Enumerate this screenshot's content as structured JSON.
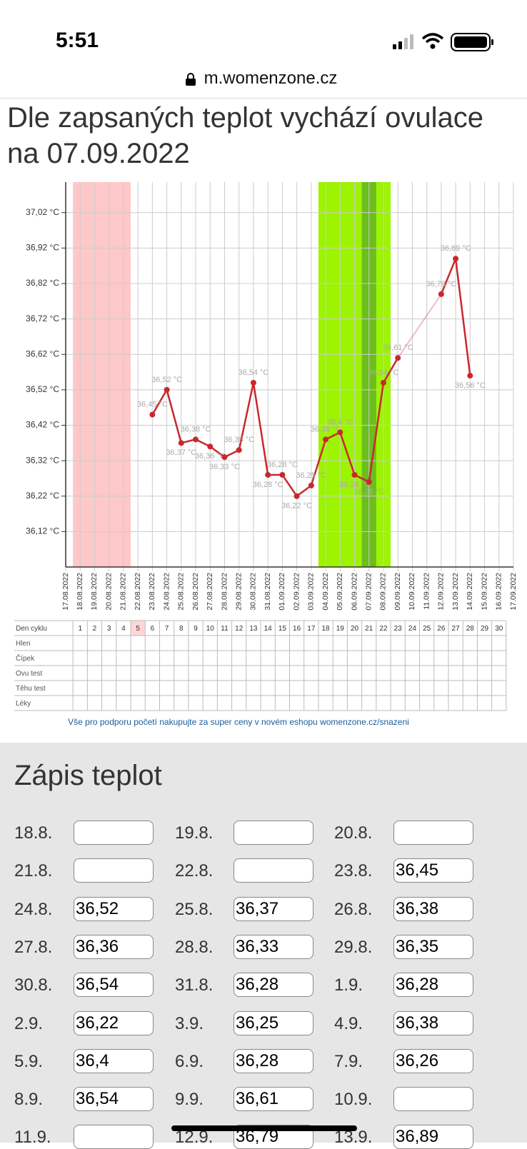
{
  "status": {
    "time": "5:51"
  },
  "browser": {
    "url": "m.womenzone.cz"
  },
  "heading": "Dle zapsaných teplot vychází ovulace na 07.09.2022",
  "chart_data": {
    "type": "line",
    "categories": [
      "17.08.2022",
      "18.08.2022",
      "19.08.2022",
      "20.08.2022",
      "21.08.2022",
      "22.08.2022",
      "23.08.2022",
      "24.08.2022",
      "25.08.2022",
      "26.08.2022",
      "27.08.2022",
      "28.08.2022",
      "29.08.2022",
      "30.08.2022",
      "31.08.2022",
      "01.09.2022",
      "02.09.2022",
      "03.09.2022",
      "04.09.2022",
      "05.09.2022",
      "06.09.2022",
      "07.09.2022",
      "08.09.2022",
      "09.09.2022",
      "10.09.2022",
      "11.09.2022",
      "12.09.2022",
      "13.09.2022",
      "14.09.2022",
      "15.09.2022",
      "16.09.2022",
      "17.09.2022"
    ],
    "series": [
      {
        "color": "#c8282d",
        "values": [
          null,
          null,
          null,
          null,
          null,
          null,
          36.45,
          36.52,
          36.37,
          36.38,
          36.36,
          36.33,
          36.35,
          36.54,
          36.28,
          36.28,
          36.22,
          36.25,
          36.38,
          36.4,
          36.28,
          36.26,
          36.54,
          36.61,
          null,
          null,
          36.79,
          36.89,
          36.56,
          null,
          null,
          null
        ],
        "value_labels": [
          null,
          null,
          null,
          null,
          null,
          null,
          "36,45 °C",
          "36,52 °C",
          "36,37 °C",
          "36,38 °C",
          "36,36 °C",
          "36,33 °C",
          "36,35 °C",
          "36,54 °C",
          "36,28 °C",
          "36,28 °C",
          "36,22 °C",
          "36,25 °C",
          "36,38 °C",
          "36,4 °C",
          "36,28 °C",
          "36,26 °C",
          "36,54 °C",
          "36,61 °C",
          null,
          null,
          "36,79 °C",
          "36,89 °C",
          "36,56 °C",
          null,
          null,
          null
        ]
      }
    ],
    "ylim": [
      36.02,
      37.09
    ],
    "yticks": [
      {
        "value": 36.12,
        "label": "36,12 °C"
      },
      {
        "value": 36.22,
        "label": "36,22 °C"
      },
      {
        "value": 36.32,
        "label": "36,32 °C"
      },
      {
        "value": 36.42,
        "label": "36,42 °C"
      },
      {
        "value": 36.52,
        "label": "36,52 °C"
      },
      {
        "value": 36.62,
        "label": "36,62 °C"
      },
      {
        "value": 36.72,
        "label": "36,72 °C"
      },
      {
        "value": 36.82,
        "label": "36,82 °C"
      },
      {
        "value": 36.92,
        "label": "36,92 °C"
      },
      {
        "value": 37.02,
        "label": "37,02 °C"
      }
    ],
    "grid": true
  },
  "cycle_table": {
    "header": "Den cyklu",
    "days": [
      1,
      2,
      3,
      4,
      5,
      6,
      7,
      8,
      9,
      10,
      11,
      12,
      13,
      14,
      15,
      16,
      17,
      18,
      19,
      20,
      21,
      22,
      23,
      24,
      25,
      26,
      27,
      28,
      29,
      30
    ],
    "rows": [
      "Hlen",
      "Čípek",
      "Ovu test",
      "Těhu test",
      "Léky"
    ]
  },
  "promo": "Vše pro podporu početí nakupujte za super ceny v novém eshopu womenzone.cz/snazeni",
  "entries": {
    "title": "Zápis teplot",
    "items": [
      {
        "date": "18.8.",
        "value": null
      },
      {
        "date": "19.8.",
        "value": null
      },
      {
        "date": "20.8.",
        "value": null
      },
      {
        "date": "21.8.",
        "value": null
      },
      {
        "date": "22.8.",
        "value": null
      },
      {
        "date": "23.8.",
        "value": "36,45"
      },
      {
        "date": "24.8.",
        "value": "36,52"
      },
      {
        "date": "25.8.",
        "value": "36,37"
      },
      {
        "date": "26.8.",
        "value": "36,38"
      },
      {
        "date": "27.8.",
        "value": "36,36"
      },
      {
        "date": "28.8.",
        "value": "36,33"
      },
      {
        "date": "29.8.",
        "value": "36,35"
      },
      {
        "date": "30.8.",
        "value": "36,54"
      },
      {
        "date": "31.8.",
        "value": "36,28"
      },
      {
        "date": "1.9.",
        "value": "36,28"
      },
      {
        "date": "2.9.",
        "value": "36,22"
      },
      {
        "date": "3.9.",
        "value": "36,25"
      },
      {
        "date": "4.9.",
        "value": "36,38"
      },
      {
        "date": "5.9.",
        "value": "36,4"
      },
      {
        "date": "6.9.",
        "value": "36,28"
      },
      {
        "date": "7.9.",
        "value": "36,26"
      },
      {
        "date": "8.9.",
        "value": "36,54"
      },
      {
        "date": "9.9.",
        "value": "36,61"
      },
      {
        "date": "10.9.",
        "value": null
      },
      {
        "date": "11.9.",
        "value": null
      },
      {
        "date": "12.9.",
        "value": "36,79"
      },
      {
        "date": "13.9.",
        "value": "36,89"
      }
    ]
  }
}
